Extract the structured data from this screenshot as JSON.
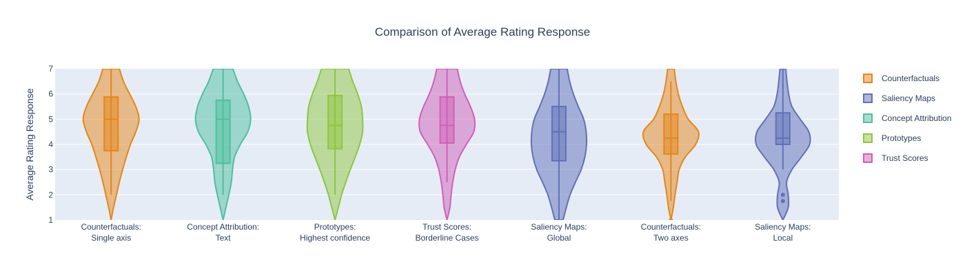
{
  "chart_data": {
    "type": "violin",
    "title": "Comparison of Average Rating Response",
    "xlabel": "",
    "ylabel": "Average Rating Response",
    "ylim": [
      1,
      7
    ],
    "yticks": [
      1,
      2,
      3,
      4,
      5,
      6,
      7
    ],
    "grid": true,
    "legend_position": "right",
    "legend": [
      {
        "name": "Counterfactuals",
        "color": "#e6861a"
      },
      {
        "name": "Saliency Maps",
        "color": "#6070b8"
      },
      {
        "name": "Concept Attribution",
        "color": "#4fbf9f"
      },
      {
        "name": "Prototypes",
        "color": "#8fc63f"
      },
      {
        "name": "Trust Scores",
        "color": "#d05fb8"
      }
    ],
    "categories": [
      {
        "label_lines": [
          "Counterfactuals:",
          "Single axis"
        ],
        "group": "Counterfactuals",
        "box": {
          "q1": 3.75,
          "median": 5.0,
          "q3": 5.88,
          "whisker_low": 2.0,
          "whisker_high": 7.0
        },
        "density": [
          [
            1.0,
            0.0
          ],
          [
            1.5,
            0.06
          ],
          [
            2.0,
            0.13
          ],
          [
            2.5,
            0.2
          ],
          [
            3.0,
            0.28
          ],
          [
            3.5,
            0.37
          ],
          [
            4.0,
            0.47
          ],
          [
            4.5,
            0.6
          ],
          [
            5.0,
            0.68
          ],
          [
            5.5,
            0.6
          ],
          [
            6.0,
            0.45
          ],
          [
            6.5,
            0.3
          ],
          [
            7.0,
            0.2
          ]
        ],
        "outliers": []
      },
      {
        "label_lines": [
          "Concept Attribution:",
          "Text"
        ],
        "group": "Concept Attribution",
        "box": {
          "q1": 3.25,
          "median": 5.0,
          "q3": 5.75,
          "whisker_low": 2.0,
          "whisker_high": 7.0
        },
        "density": [
          [
            1.0,
            0.0
          ],
          [
            1.5,
            0.07
          ],
          [
            2.0,
            0.14
          ],
          [
            2.5,
            0.2
          ],
          [
            3.0,
            0.23
          ],
          [
            3.5,
            0.28
          ],
          [
            4.0,
            0.42
          ],
          [
            4.5,
            0.6
          ],
          [
            5.0,
            0.67
          ],
          [
            5.5,
            0.62
          ],
          [
            6.0,
            0.5
          ],
          [
            6.5,
            0.35
          ],
          [
            7.0,
            0.24
          ]
        ],
        "outliers": []
      },
      {
        "label_lines": [
          "Prototypes:",
          "Highest confidence"
        ],
        "group": "Prototypes",
        "box": {
          "q1": 3.83,
          "median": 4.75,
          "q3": 5.94,
          "whisker_low": 2.0,
          "whisker_high": 7.0
        },
        "density": [
          [
            1.0,
            0.0
          ],
          [
            1.5,
            0.08
          ],
          [
            2.0,
            0.16
          ],
          [
            2.5,
            0.26
          ],
          [
            3.0,
            0.37
          ],
          [
            3.5,
            0.49
          ],
          [
            4.0,
            0.6
          ],
          [
            4.5,
            0.67
          ],
          [
            5.0,
            0.67
          ],
          [
            5.5,
            0.64
          ],
          [
            6.0,
            0.55
          ],
          [
            6.5,
            0.43
          ],
          [
            7.0,
            0.33
          ]
        ],
        "outliers": []
      },
      {
        "label_lines": [
          "Trust Scores:",
          "Borderline Cases"
        ],
        "group": "Trust Scores",
        "box": {
          "q1": 4.05,
          "median": 4.75,
          "q3": 5.88,
          "whisker_low": 2.5,
          "whisker_high": 7.0
        },
        "density": [
          [
            1.0,
            0.0
          ],
          [
            1.5,
            0.07
          ],
          [
            2.0,
            0.1
          ],
          [
            2.5,
            0.14
          ],
          [
            3.0,
            0.2
          ],
          [
            3.5,
            0.3
          ],
          [
            4.0,
            0.47
          ],
          [
            4.5,
            0.65
          ],
          [
            5.0,
            0.67
          ],
          [
            5.5,
            0.57
          ],
          [
            6.0,
            0.43
          ],
          [
            6.5,
            0.32
          ],
          [
            7.0,
            0.25
          ]
        ],
        "outliers": []
      },
      {
        "label_lines": [
          "Saliency Maps:",
          "Global"
        ],
        "group": "Saliency Maps",
        "box": {
          "q1": 3.35,
          "median": 4.5,
          "q3": 5.5,
          "whisker_low": 1.0,
          "whisker_high": 7.0
        },
        "density": [
          [
            1.0,
            0.1
          ],
          [
            1.5,
            0.18
          ],
          [
            2.0,
            0.27
          ],
          [
            2.5,
            0.4
          ],
          [
            3.0,
            0.54
          ],
          [
            3.5,
            0.63
          ],
          [
            4.0,
            0.67
          ],
          [
            4.5,
            0.66
          ],
          [
            5.0,
            0.6
          ],
          [
            5.5,
            0.47
          ],
          [
            6.0,
            0.35
          ],
          [
            6.5,
            0.26
          ],
          [
            7.0,
            0.2
          ]
        ],
        "outliers": []
      },
      {
        "label_lines": [
          "Counterfactuals:",
          "Two axes"
        ],
        "group": "Counterfactuals",
        "box": {
          "q1": 3.62,
          "median": 4.25,
          "q3": 5.2,
          "whisker_low": 1.75,
          "whisker_high": 6.5
        },
        "density": [
          [
            1.0,
            0.0
          ],
          [
            1.5,
            0.06
          ],
          [
            2.0,
            0.1
          ],
          [
            2.5,
            0.15
          ],
          [
            3.0,
            0.2
          ],
          [
            3.5,
            0.35
          ],
          [
            4.0,
            0.6
          ],
          [
            4.5,
            0.67
          ],
          [
            5.0,
            0.42
          ],
          [
            5.5,
            0.28
          ],
          [
            6.0,
            0.18
          ],
          [
            6.5,
            0.12
          ],
          [
            7.0,
            0.08
          ]
        ],
        "outliers": [
          1.0
        ]
      },
      {
        "label_lines": [
          "Saliency Maps:",
          "Local"
        ],
        "group": "Saliency Maps",
        "box": {
          "q1": 4.0,
          "median": 4.25,
          "q3": 5.25,
          "whisker_low": 3.0,
          "whisker_high": 7.0
        },
        "density": [
          [
            1.0,
            0.0
          ],
          [
            1.5,
            0.13
          ],
          [
            2.0,
            0.13
          ],
          [
            2.5,
            0.09
          ],
          [
            3.0,
            0.22
          ],
          [
            3.5,
            0.45
          ],
          [
            4.0,
            0.65
          ],
          [
            4.5,
            0.63
          ],
          [
            5.0,
            0.42
          ],
          [
            5.5,
            0.22
          ],
          [
            6.0,
            0.14
          ],
          [
            6.5,
            0.1
          ],
          [
            7.0,
            0.07
          ]
        ],
        "outliers": [
          2.0,
          1.75
        ]
      }
    ]
  }
}
